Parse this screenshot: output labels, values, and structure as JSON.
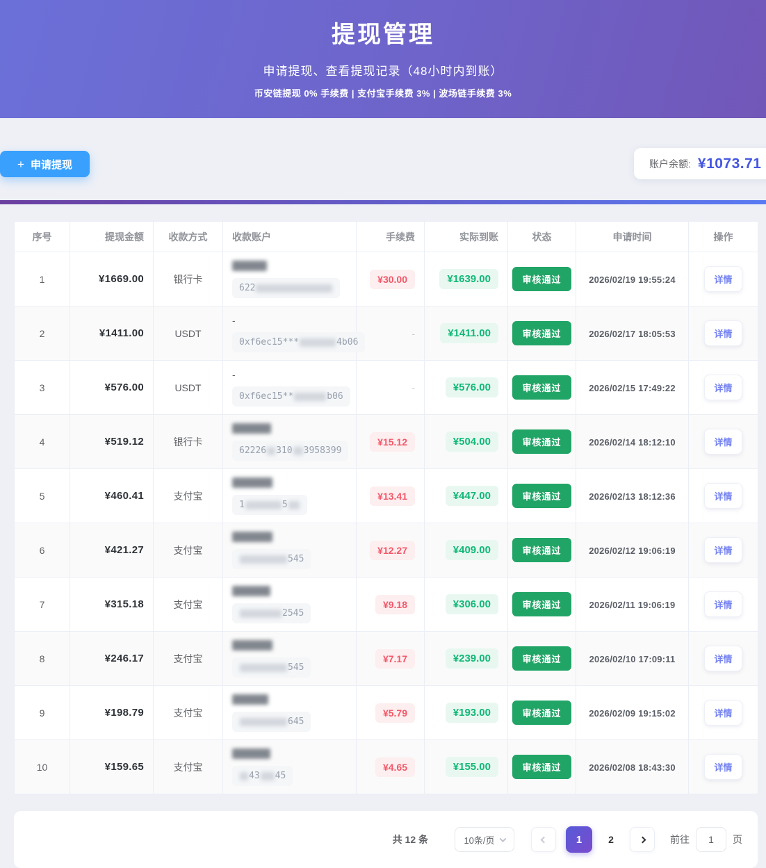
{
  "hero": {
    "title": "提现管理",
    "subtitle": "申请提现、查看提现记录（48小时内到账）",
    "note": "币安链提现 0% 手续费 | 支付宝手续费 3% | 波场链手续费 3%"
  },
  "toolbar": {
    "apply_label": "申请提现",
    "balance_label": "账户余额:",
    "balance_value": "¥1073.71"
  },
  "colors": {
    "primary_blue": "#3aa0fe",
    "balance_value": "#4657e0",
    "fee_red": "#f25868",
    "actual_green": "#12b877",
    "status_green": "#21a566",
    "hero_gradient": [
      "#6b70d8",
      "#7157b8"
    ],
    "divider_gradient": [
      "#6b3fa0",
      "#5a7af2"
    ],
    "active_page_gradient": [
      "#565ad8",
      "#7a4ccd"
    ]
  },
  "table": {
    "columns": [
      "序号",
      "提现金额",
      "收款方式",
      "收款账户",
      "手续费",
      "实际到账",
      "状态",
      "申请时间",
      "操作"
    ],
    "rows": [
      {
        "index": "1",
        "amount": "¥1669.00",
        "method": "银行卡",
        "account": {
          "name": {
            "blur": 50
          },
          "parts": [
            {
              "text": "622"
            },
            {
              "blur": 110
            }
          ]
        },
        "fee": "¥30.00",
        "actual": "¥1639.00",
        "status": "审核通过",
        "time": "2026/02/19 19:55:24",
        "action": "详情"
      },
      {
        "index": "2",
        "amount": "¥1411.00",
        "method": "USDT",
        "account": {
          "name": {
            "text": "-"
          },
          "parts": [
            {
              "text": "0xf6ec15***"
            },
            {
              "blur": 52
            },
            {
              "text": "4b06"
            }
          ]
        },
        "fee": "-",
        "actual": "¥1411.00",
        "status": "审核通过",
        "time": "2026/02/17 18:05:53",
        "action": "详情"
      },
      {
        "index": "3",
        "amount": "¥576.00",
        "method": "USDT",
        "account": {
          "name": {
            "text": "-"
          },
          "parts": [
            {
              "text": "0xf6ec15**"
            },
            {
              "blur": 46
            },
            {
              "text": "b06"
            }
          ]
        },
        "fee": "-",
        "actual": "¥576.00",
        "status": "审核通过",
        "time": "2026/02/15 17:49:22",
        "action": "详情"
      },
      {
        "index": "4",
        "amount": "¥519.12",
        "method": "银行卡",
        "account": {
          "name": {
            "blur": 56
          },
          "parts": [
            {
              "text": "62226"
            },
            {
              "blur": 12
            },
            {
              "text": "310"
            },
            {
              "blur": 14
            },
            {
              "text": "3958399"
            }
          ]
        },
        "fee": "¥15.12",
        "actual": "¥504.00",
        "status": "审核通过",
        "time": "2026/02/14 18:12:10",
        "action": "详情"
      },
      {
        "index": "5",
        "amount": "¥460.41",
        "method": "支付宝",
        "account": {
          "name": {
            "blur": 58
          },
          "parts": [
            {
              "text": "1"
            },
            {
              "blur": 52
            },
            {
              "text": "5"
            },
            {
              "blur": 16
            }
          ]
        },
        "fee": "¥13.41",
        "actual": "¥447.00",
        "status": "审核通过",
        "time": "2026/02/13 18:12:36",
        "action": "详情"
      },
      {
        "index": "6",
        "amount": "¥421.27",
        "method": "支付宝",
        "account": {
          "name": {
            "blur": 58
          },
          "parts": [
            {
              "blur": 68
            },
            {
              "text": "545"
            }
          ]
        },
        "fee": "¥12.27",
        "actual": "¥409.00",
        "status": "审核通过",
        "time": "2026/02/12 19:06:19",
        "action": "详情"
      },
      {
        "index": "7",
        "amount": "¥315.18",
        "method": "支付宝",
        "account": {
          "name": {
            "blur": 55
          },
          "parts": [
            {
              "blur": 60
            },
            {
              "text": "2545"
            }
          ]
        },
        "fee": "¥9.18",
        "actual": "¥306.00",
        "status": "审核通过",
        "time": "2026/02/11 19:06:19",
        "action": "详情"
      },
      {
        "index": "8",
        "amount": "¥246.17",
        "method": "支付宝",
        "account": {
          "name": {
            "blur": 58
          },
          "parts": [
            {
              "blur": 68
            },
            {
              "text": "545"
            }
          ]
        },
        "fee": "¥7.17",
        "actual": "¥239.00",
        "status": "审核通过",
        "time": "2026/02/10 17:09:11",
        "action": "详情"
      },
      {
        "index": "9",
        "amount": "¥198.79",
        "method": "支付宝",
        "account": {
          "name": {
            "blur": 52
          },
          "parts": [
            {
              "blur": 68
            },
            {
              "text": "645"
            }
          ]
        },
        "fee": "¥5.79",
        "actual": "¥193.00",
        "status": "审核通过",
        "time": "2026/02/09 19:15:02",
        "action": "详情"
      },
      {
        "index": "10",
        "amount": "¥159.65",
        "method": "支付宝",
        "account": {
          "name": {
            "blur": 55
          },
          "parts": [
            {
              "blur": 12
            },
            {
              "text": "43"
            },
            {
              "blur": 20
            },
            {
              "text": "45"
            }
          ]
        },
        "fee": "¥4.65",
        "actual": "¥155.00",
        "status": "审核通过",
        "time": "2026/02/08 18:43:30",
        "action": "详情"
      }
    ]
  },
  "pagination": {
    "total_label": "共 12 条",
    "page_size": "10条/页",
    "pages": [
      "1",
      "2"
    ],
    "active_page": "1",
    "goto_label": "前往",
    "goto_value": "1",
    "goto_suffix": "页"
  }
}
